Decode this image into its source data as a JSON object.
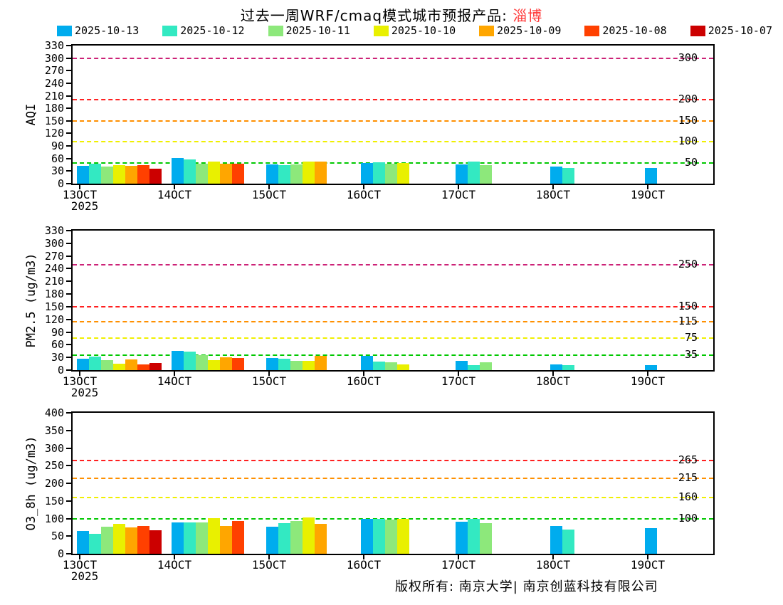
{
  "title": {
    "prefix": "过去一周WRF/cmaq模式城市预报产品: ",
    "city": "淄博",
    "city_color": "#FF3A3A"
  },
  "legend": [
    {
      "label": "2025-10-13",
      "color": "#00ACEE"
    },
    {
      "label": "2025-10-12",
      "color": "#33E9C2"
    },
    {
      "label": "2025-10-11",
      "color": "#8DE87B"
    },
    {
      "label": "2025-10-10",
      "color": "#E9F000"
    },
    {
      "label": "2025-10-09",
      "color": "#FFA600"
    },
    {
      "label": "2025-10-08",
      "color": "#FF4000"
    },
    {
      "label": "2025-10-07",
      "color": "#CC0000"
    }
  ],
  "footer": {
    "copyright": "版权所有: 南京大学| 南京创蓝科技有限公司"
  },
  "chart_data": [
    {
      "type": "bar",
      "ylabel": "AQI",
      "ylim": [
        0,
        330
      ],
      "yticks": [
        0,
        30,
        60,
        90,
        120,
        150,
        180,
        210,
        240,
        270,
        300,
        330
      ],
      "categories": [
        "13OCT",
        "14OCT",
        "15OCT",
        "16OCT",
        "17OCT",
        "18OCT",
        "19OCT"
      ],
      "x_sub_label": "2025",
      "legend_position": "top",
      "grid": false,
      "series": [
        {
          "name": "2025-10-13",
          "values": [
            42,
            61,
            46,
            50,
            46,
            40,
            38
          ]
        },
        {
          "name": "2025-10-12",
          "values": [
            47,
            57,
            45,
            51,
            53,
            37,
            null
          ]
        },
        {
          "name": "2025-10-11",
          "values": [
            40,
            48,
            46,
            47,
            45,
            null,
            null
          ]
        },
        {
          "name": "2025-10-10",
          "values": [
            45,
            52,
            53,
            50,
            null,
            null,
            null
          ]
        },
        {
          "name": "2025-10-09",
          "values": [
            42,
            48,
            53,
            null,
            null,
            null,
            null
          ]
        },
        {
          "name": "2025-10-08",
          "values": [
            45,
            48,
            null,
            null,
            null,
            null,
            null
          ]
        },
        {
          "name": "2025-10-07",
          "values": [
            35,
            null,
            null,
            null,
            null,
            null,
            null
          ]
        }
      ],
      "ref_lines": [
        {
          "value": 50,
          "label": "50",
          "color": "#00C800"
        },
        {
          "value": 100,
          "label": "100",
          "color": "#F0F000"
        },
        {
          "value": 150,
          "label": "150",
          "color": "#FF9000"
        },
        {
          "value": 200,
          "label": "200",
          "color": "#FF2020"
        },
        {
          "value": 300,
          "label": "300",
          "color": "#CC2277"
        }
      ]
    },
    {
      "type": "bar",
      "ylabel": "PM2.5 (ug/m3)",
      "ylim": [
        0,
        330
      ],
      "yticks": [
        0,
        30,
        60,
        90,
        120,
        150,
        180,
        210,
        240,
        270,
        300,
        330
      ],
      "categories": [
        "13OCT",
        "14OCT",
        "15OCT",
        "16OCT",
        "17OCT",
        "18OCT",
        "19OCT"
      ],
      "x_sub_label": "2025",
      "grid": false,
      "series": [
        {
          "name": "2025-10-13",
          "values": [
            27,
            45,
            29,
            34,
            22,
            13,
            11
          ]
        },
        {
          "name": "2025-10-12",
          "values": [
            32,
            43,
            27,
            21,
            12,
            11,
            null
          ]
        },
        {
          "name": "2025-10-11",
          "values": [
            24,
            36,
            22,
            19,
            19,
            null,
            null
          ]
        },
        {
          "name": "2025-10-10",
          "values": [
            15,
            24,
            22,
            14,
            null,
            null,
            null
          ]
        },
        {
          "name": "2025-10-09",
          "values": [
            26,
            31,
            33,
            null,
            null,
            null,
            null
          ]
        },
        {
          "name": "2025-10-08",
          "values": [
            13,
            28,
            null,
            null,
            null,
            null,
            null
          ]
        },
        {
          "name": "2025-10-07",
          "values": [
            17,
            null,
            null,
            null,
            null,
            null,
            null
          ]
        }
      ],
      "ref_lines": [
        {
          "value": 35,
          "label": "35",
          "color": "#00C800"
        },
        {
          "value": 75,
          "label": "75",
          "color": "#F0F000"
        },
        {
          "value": 115,
          "label": "115",
          "color": "#FF9000"
        },
        {
          "value": 150,
          "label": "150",
          "color": "#FF2020"
        },
        {
          "value": 250,
          "label": "250",
          "color": "#CC2277"
        }
      ]
    },
    {
      "type": "bar",
      "ylabel": "O3_8h (ug/m3)",
      "ylim": [
        0,
        400
      ],
      "yticks": [
        0,
        50,
        100,
        150,
        200,
        250,
        300,
        350,
        400
      ],
      "categories": [
        "13OCT",
        "14OCT",
        "15OCT",
        "16OCT",
        "17OCT",
        "18OCT",
        "19OCT"
      ],
      "x_sub_label": "2025",
      "grid": false,
      "series": [
        {
          "name": "2025-10-13",
          "values": [
            64,
            88,
            76,
            99,
            90,
            79,
            72
          ]
        },
        {
          "name": "2025-10-12",
          "values": [
            56,
            89,
            87,
            100,
            99,
            68,
            null
          ]
        },
        {
          "name": "2025-10-11",
          "values": [
            76,
            88,
            92,
            97,
            87,
            null,
            null
          ]
        },
        {
          "name": "2025-10-10",
          "values": [
            85,
            101,
            103,
            99,
            null,
            null,
            null
          ]
        },
        {
          "name": "2025-10-09",
          "values": [
            74,
            79,
            85,
            null,
            null,
            null,
            null
          ]
        },
        {
          "name": "2025-10-08",
          "values": [
            79,
            92,
            null,
            null,
            null,
            null,
            null
          ]
        },
        {
          "name": "2025-10-07",
          "values": [
            66,
            null,
            null,
            null,
            null,
            null,
            null
          ]
        }
      ],
      "ref_lines": [
        {
          "value": 100,
          "label": "100",
          "color": "#00C800"
        },
        {
          "value": 160,
          "label": "160",
          "color": "#F0F000"
        },
        {
          "value": 215,
          "label": "215",
          "color": "#FF9000"
        },
        {
          "value": 265,
          "label": "265",
          "color": "#FF2020"
        }
      ]
    }
  ]
}
